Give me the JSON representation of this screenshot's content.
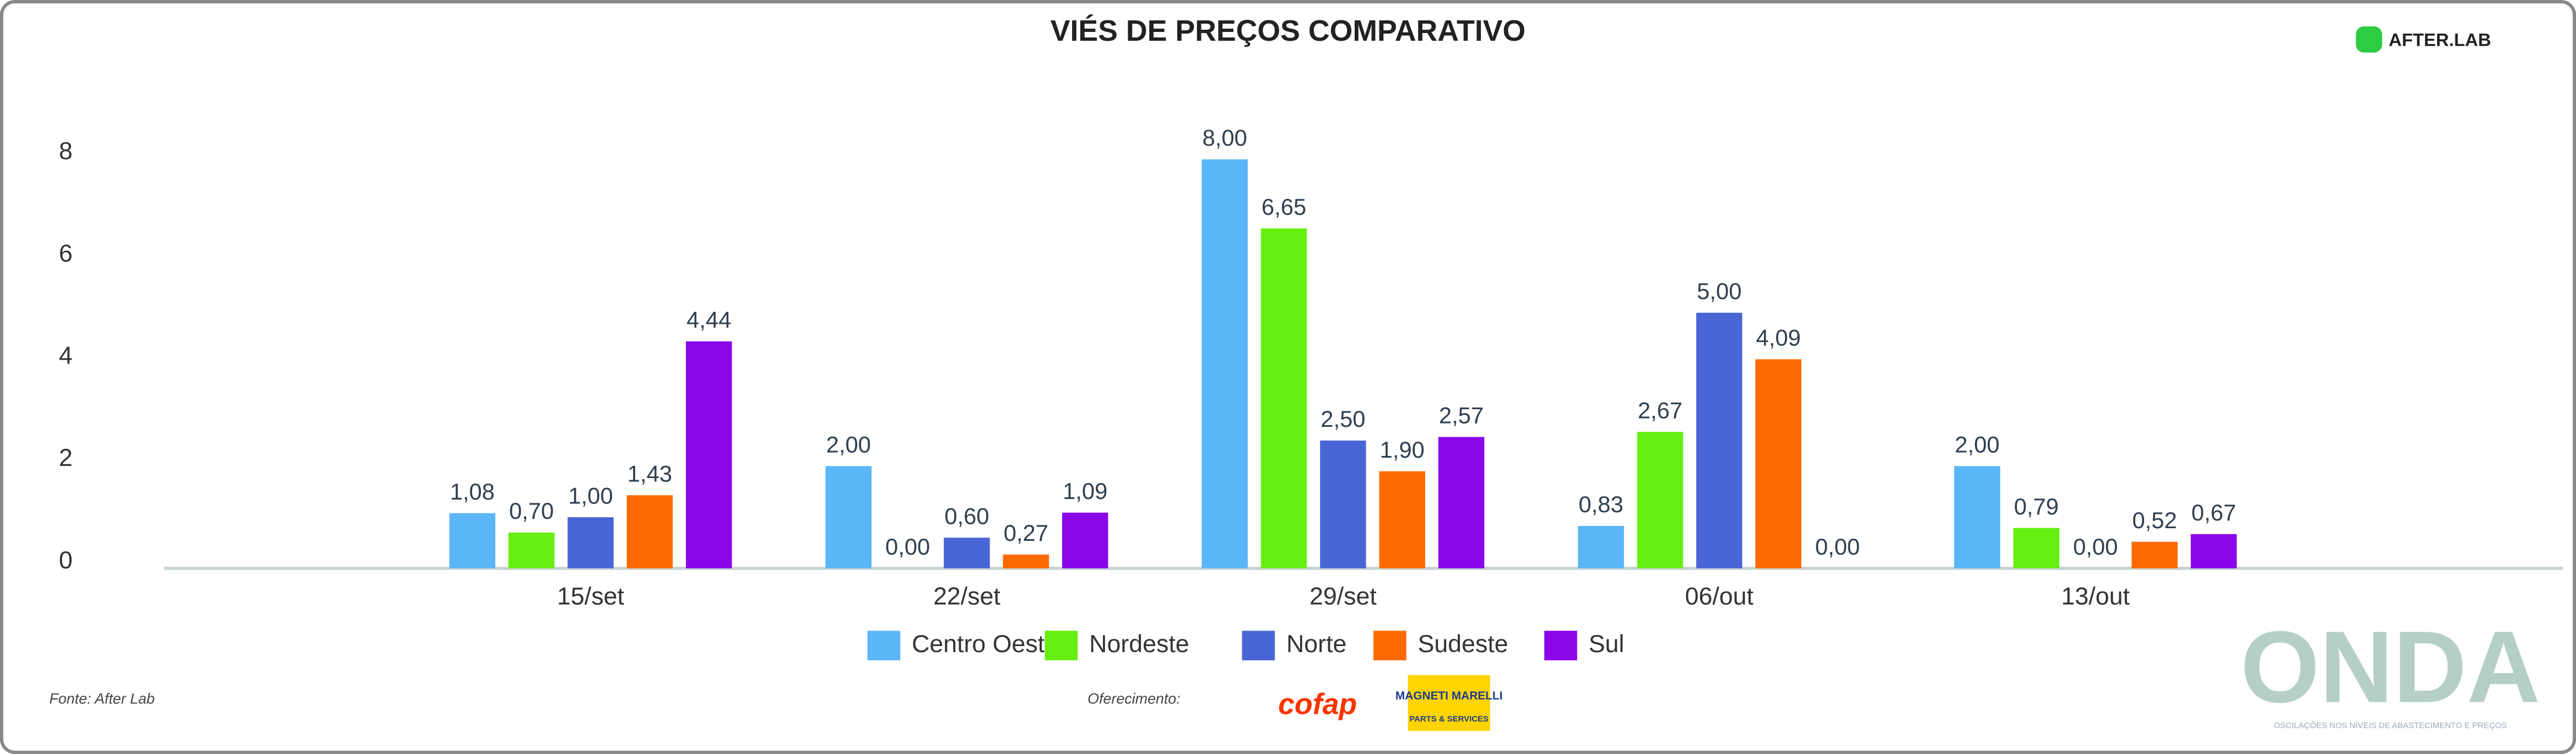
{
  "chart_data": {
    "type": "bar",
    "title": "VIÉS DE PREÇOS COMPARATIVO",
    "categories": [
      "15/set",
      "22/set",
      "29/set",
      "06/out",
      "13/out"
    ],
    "series": [
      {
        "name": "Centro Oeste",
        "color": "#5ab6f7",
        "values": [
          1.08,
          2.0,
          8.0,
          0.83,
          2.0
        ],
        "value_labels": [
          "1,08",
          "2,00",
          "8,00",
          "0,83",
          "2,00"
        ]
      },
      {
        "name": "Nordeste",
        "color": "#66ee11",
        "values": [
          0.7,
          0.0,
          6.65,
          2.67,
          0.79
        ],
        "value_labels": [
          "0,70",
          "0,00",
          "6,65",
          "2,67",
          "0,79"
        ]
      },
      {
        "name": "Norte",
        "color": "#4a66d6",
        "values": [
          1.0,
          0.6,
          2.5,
          5.0,
          0.0
        ],
        "value_labels": [
          "1,00",
          "0,60",
          "2,50",
          "5,00",
          "0,00"
        ]
      },
      {
        "name": "Sudeste",
        "color": "#ff6a00",
        "values": [
          1.43,
          0.27,
          1.9,
          4.09,
          0.52
        ],
        "value_labels": [
          "1,43",
          "0,27",
          "1,90",
          "4,09",
          "0,52"
        ]
      },
      {
        "name": "Sul",
        "color": "#8a06e8",
        "values": [
          4.44,
          1.09,
          2.57,
          0.0,
          0.67
        ],
        "value_labels": [
          "4,44",
          "1,09",
          "2,57",
          "0,00",
          "0,67"
        ]
      }
    ],
    "ylim": [
      0,
      8
    ],
    "yticks": [
      0,
      2,
      4,
      6,
      8
    ],
    "grid": false,
    "legend": "bottom"
  },
  "footer": {
    "source": "Fonte: After Lab",
    "sponsor": "Oferecimento:",
    "cofap": "cofap",
    "marelli": "MAGNETI MARELLI",
    "marelli_sub": "PARTS & SERVICES",
    "brand": "ONDA",
    "brand_sub": "OSCILAÇÕES NOS NÍVEIS DE ABASTECIMENTO E PREÇOS",
    "afterlab": "AFTER.LAB"
  }
}
